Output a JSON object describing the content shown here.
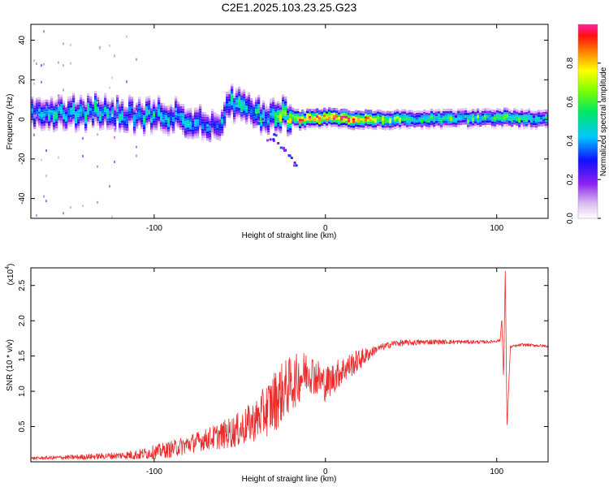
{
  "title": "C2E1.2025.103.23.25.G23",
  "chart_data": [
    {
      "type": "heatmap",
      "xlabel": "Height of straight line (km)",
      "ylabel": "Frequency (Hz)",
      "xlim": [
        -172,
        130
      ],
      "ylim": [
        -50,
        48
      ],
      "xticks": [
        -100,
        0,
        100
      ],
      "yticks": [
        -40,
        -20,
        0,
        20,
        40
      ],
      "xtick_labels": [
        "-100",
        "0",
        "100"
      ],
      "ytick_labels": [
        "-40",
        "-20",
        "0",
        "20",
        "40"
      ],
      "grid": false,
      "colorbar": {
        "label": "Normalized spectral amplitude",
        "range": [
          0,
          1
        ],
        "ticks": [
          0.0,
          0.2,
          0.4,
          0.6,
          0.8
        ],
        "tick_labels": [
          "0.0",
          "0.2",
          "0.4",
          "0.6",
          "0.8"
        ],
        "colormap": "rainbow (white-violet-blue-cyan-green-yellow-red-magenta)"
      },
      "ridge": [
        {
          "x": -170,
          "f": 4,
          "amp": 0.45
        },
        {
          "x": -150,
          "f": 3,
          "amp": 0.5
        },
        {
          "x": -130,
          "f": 4,
          "amp": 0.5
        },
        {
          "x": -110,
          "f": 2,
          "amp": 0.45
        },
        {
          "x": -90,
          "f": 2,
          "amp": 0.45
        },
        {
          "x": -75,
          "f": -1,
          "amp": 0.4
        },
        {
          "x": -62,
          "f": -3,
          "amp": 0.35
        },
        {
          "x": -55,
          "f": 9,
          "amp": 0.5
        },
        {
          "x": -45,
          "f": 5,
          "amp": 0.45
        },
        {
          "x": -35,
          "f": 1,
          "amp": 0.5
        },
        {
          "x": -25,
          "f": 2,
          "amp": 0.7
        },
        {
          "x": -15,
          "f": 0,
          "amp": 0.85
        },
        {
          "x": 0,
          "f": 1,
          "amp": 0.85
        },
        {
          "x": 20,
          "f": 0,
          "amp": 0.85
        },
        {
          "x": 50,
          "f": 0,
          "amp": 0.55
        },
        {
          "x": 100,
          "f": 1,
          "amp": 0.6
        },
        {
          "x": 130,
          "f": 0,
          "amp": 0.5
        }
      ]
    },
    {
      "type": "line",
      "xlabel": "Height of straight line (km)",
      "ylabel": "SNR (10 * v/v)",
      "y_multiplier": "(x10^4)",
      "y_multiplier_base": "(x10",
      "y_multiplier_exp": "4",
      "y_multiplier_close": ")",
      "xlim": [
        -172,
        130
      ],
      "ylim": [
        0,
        2.75
      ],
      "xticks": [
        -100,
        0,
        100
      ],
      "yticks": [
        0.5,
        1.0,
        1.5,
        2.0,
        2.5
      ],
      "xtick_labels": [
        "-100",
        "0",
        "100"
      ],
      "ytick_labels": [
        "0.5",
        "1.0",
        "1.5",
        "2.0",
        "2.5"
      ],
      "grid": false,
      "color": "#ee2b2b",
      "x": [
        -172,
        -140,
        -110,
        -100,
        -90,
        -80,
        -70,
        -60,
        -50,
        -40,
        -30,
        -25,
        -20,
        -15,
        -10,
        0,
        10,
        20,
        30,
        40,
        60,
        80,
        95,
        102,
        103,
        104,
        105,
        106,
        108,
        115,
        130
      ],
      "y": [
        0.05,
        0.07,
        0.1,
        0.14,
        0.18,
        0.25,
        0.32,
        0.38,
        0.46,
        0.6,
        0.85,
        1.0,
        1.1,
        1.2,
        1.3,
        1.1,
        1.3,
        1.45,
        1.6,
        1.68,
        1.7,
        1.7,
        1.7,
        1.72,
        2.05,
        1.15,
        2.75,
        0.5,
        1.63,
        1.66,
        1.64
      ],
      "noise_profile": {
        "x": [
          -172,
          -120,
          -90,
          -70,
          -50,
          -40,
          -30,
          -20,
          -10,
          0,
          20,
          30,
          100,
          130
        ],
        "amplitude": [
          0.02,
          0.05,
          0.12,
          0.15,
          0.25,
          0.3,
          0.45,
          0.4,
          0.3,
          0.25,
          0.15,
          0.05,
          0.02,
          0.02
        ]
      }
    }
  ]
}
